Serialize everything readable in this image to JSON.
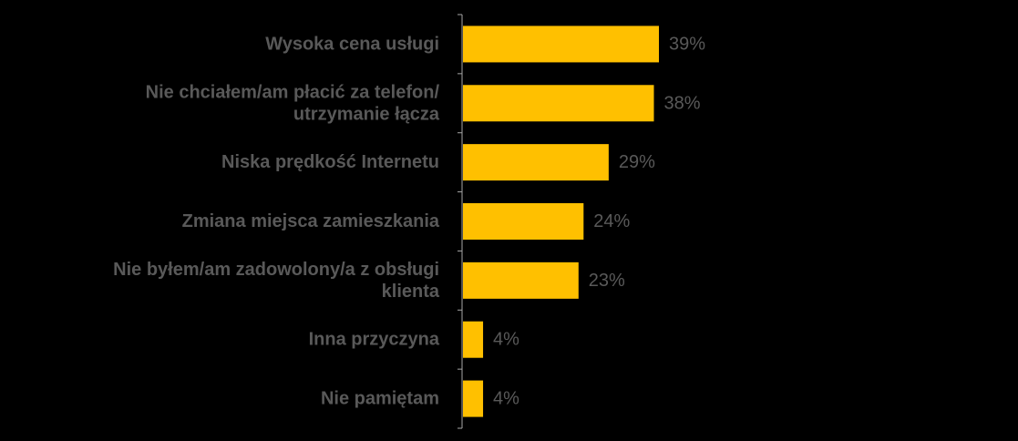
{
  "chart_data": {
    "type": "bar",
    "orientation": "horizontal",
    "categories": [
      [
        "Wysoka cena usługi"
      ],
      [
        "Nie chciałem/am płacić za telefon/",
        "utrzymanie łącza"
      ],
      [
        "Niska prędkość Internetu"
      ],
      [
        "Zmiana miejsca zamieszkania"
      ],
      [
        "Nie byłem/am zadowolony/a z obsługi",
        "klienta"
      ],
      [
        "Inna przyczyna"
      ],
      [
        "Nie pamiętam"
      ]
    ],
    "values": [
      39,
      38,
      29,
      24,
      23,
      4,
      4
    ],
    "value_labels": [
      "39%",
      "38%",
      "29%",
      "24%",
      "23%",
      "4%",
      "4%"
    ],
    "unit": "%",
    "title": "",
    "xlabel": "",
    "ylabel": "",
    "grid": false,
    "legend": "none",
    "colors": {
      "bar": "#FFC000",
      "text": "#595959",
      "axis": "#A6A6A6",
      "background": "#000000"
    }
  }
}
